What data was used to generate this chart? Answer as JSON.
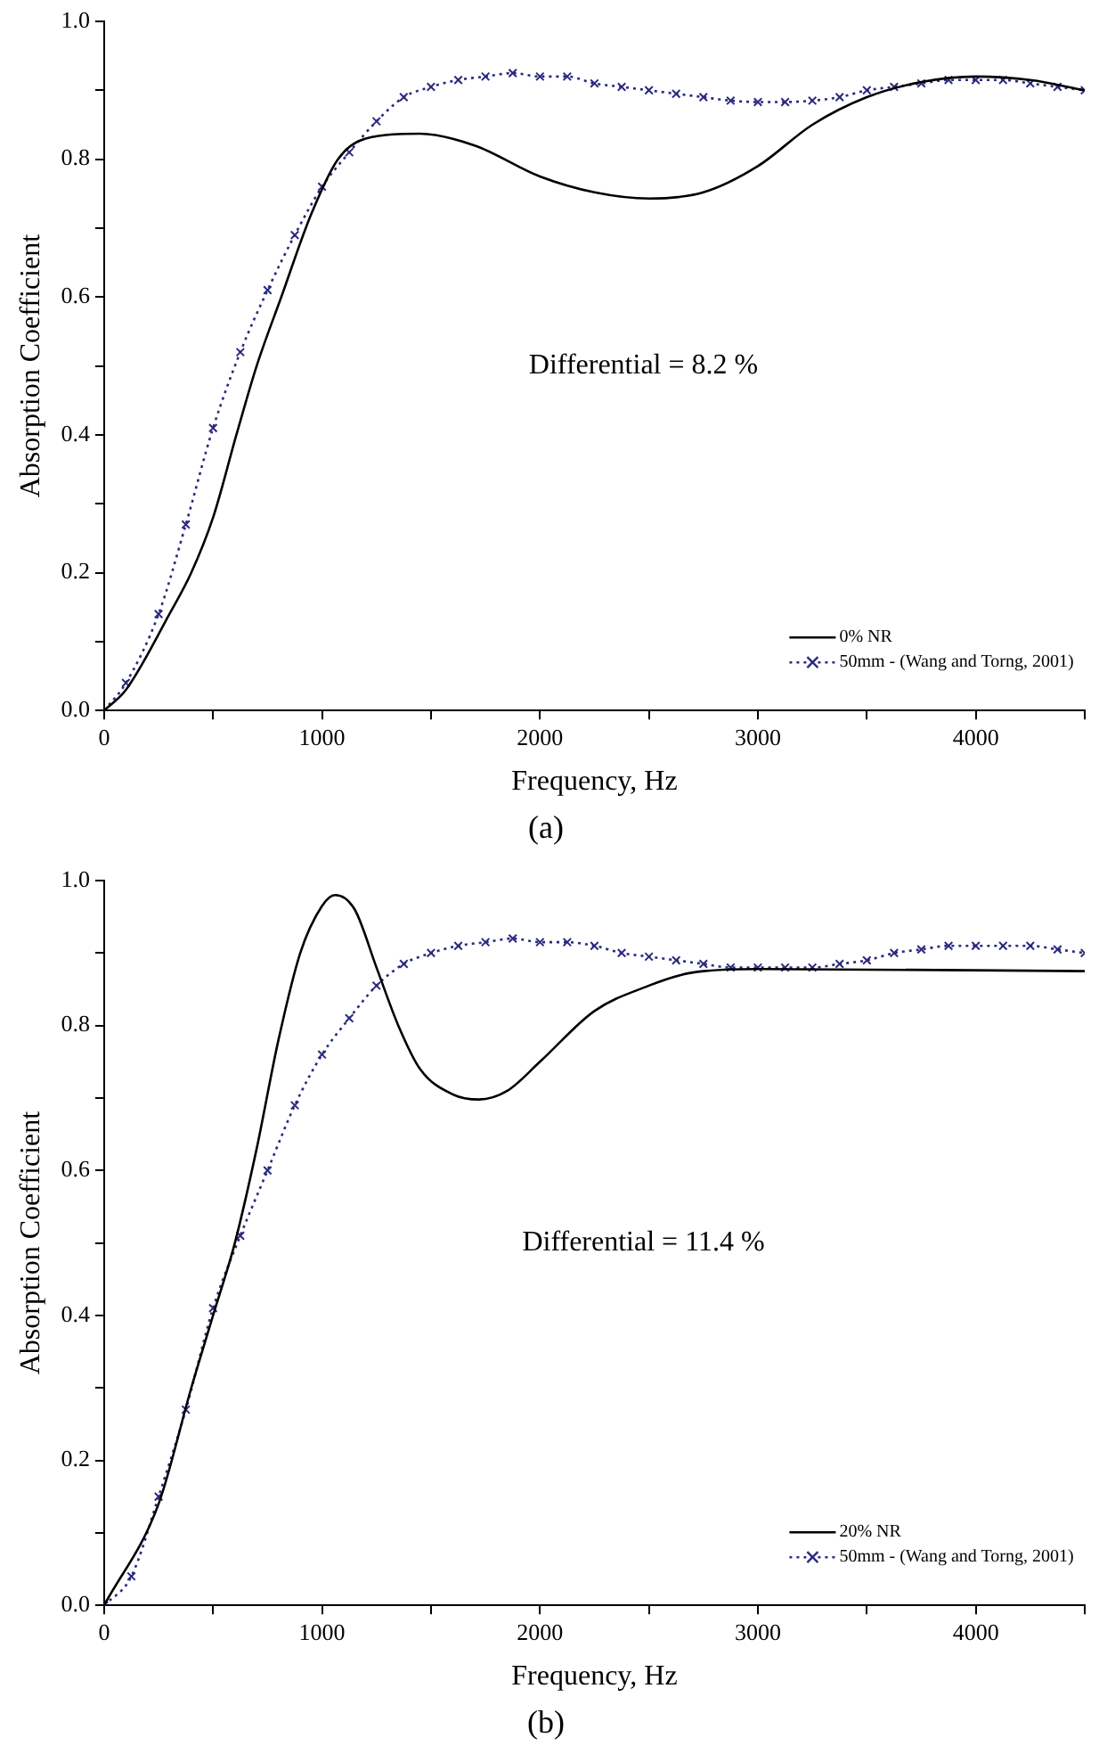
{
  "chart_data": [
    {
      "type": "line",
      "title": "(a)",
      "xlabel": "Frequency, Hz",
      "ylabel": "Absorption Coefficient",
      "annotations": [
        "Differential = 8.2 %"
      ],
      "xlim": [
        0,
        4500
      ],
      "ylim": [
        0,
        1.0
      ],
      "xticks": [
        0,
        {
          "value": 500,
          "label": null
        },
        1000,
        {
          "value": 1500,
          "label": null
        },
        2000,
        {
          "value": 2500,
          "label": null
        },
        3000,
        {
          "value": 3500,
          "label": null
        },
        4000,
        {
          "value": 4500,
          "label": null
        }
      ],
      "yticks": [
        "0.0",
        {
          "value": 0.1,
          "label": null
        },
        {
          "value": 0.2,
          "label": "0.2"
        },
        {
          "value": 0.3,
          "label": null
        },
        {
          "value": 0.4,
          "label": "0.4"
        },
        {
          "value": 0.5,
          "label": null
        },
        {
          "value": 0.6,
          "label": "0.6"
        },
        {
          "value": 0.7,
          "label": null
        },
        {
          "value": 0.8,
          "label": "0.8"
        },
        {
          "value": 0.9,
          "label": null
        },
        {
          "value": 1.0,
          "label": "1.0"
        }
      ],
      "grid": false,
      "legend": "bottom right",
      "series": [
        {
          "name": "0% NR",
          "color": "#000000",
          "marker": "none",
          "line_style": "solid",
          "x": [
            0,
            100,
            300,
            400,
            500,
            607,
            700,
            813,
            950,
            1073,
            1200,
            1450,
            1700,
            2000,
            2250,
            2500,
            2750,
            3000,
            3250,
            3500,
            3750,
            4000,
            4250,
            4500
          ],
          "values": [
            0,
            0.03,
            0.14,
            0.2,
            0.28,
            0.4,
            0.5,
            0.6,
            0.72,
            0.8,
            0.83,
            0.837,
            0.82,
            0.775,
            0.752,
            0.743,
            0.752,
            0.79,
            0.85,
            0.89,
            0.912,
            0.92,
            0.915,
            0.9
          ]
        },
        {
          "name": "50mm - (Wang and Torng, 2001)",
          "color": "#2a2a80",
          "marker": "cross",
          "line_style": "dotted",
          "x": [
            0,
            100,
            250,
            375,
            500,
            625,
            750,
            875,
            1000,
            1125,
            1250,
            1375,
            1500,
            1625,
            1750,
            1875,
            2000,
            2125,
            2250,
            2375,
            2500,
            2625,
            2750,
            2875,
            3000,
            3125,
            3250,
            3375,
            3500,
            3625,
            3750,
            3875,
            4000,
            4125,
            4250,
            4375,
            4500
          ],
          "values": [
            0,
            0.04,
            0.14,
            0.27,
            0.41,
            0.52,
            0.61,
            0.69,
            0.76,
            0.81,
            0.855,
            0.89,
            0.905,
            0.915,
            0.92,
            0.925,
            0.92,
            0.92,
            0.91,
            0.905,
            0.9,
            0.895,
            0.89,
            0.885,
            0.883,
            0.883,
            0.885,
            0.89,
            0.9,
            0.905,
            0.91,
            0.915,
            0.915,
            0.915,
            0.91,
            0.905,
            0.9
          ]
        }
      ]
    },
    {
      "type": "line",
      "title": "(b)",
      "xlabel": "Frequency, Hz",
      "ylabel": "Absorption Coefficient",
      "annotations": [
        "Differential = 11.4 %"
      ],
      "xlim": [
        0,
        4500
      ],
      "ylim": [
        0,
        1.0
      ],
      "xticks": [
        0,
        {
          "value": 500,
          "label": null
        },
        1000,
        {
          "value": 1500,
          "label": null
        },
        2000,
        {
          "value": 2500,
          "label": null
        },
        3000,
        {
          "value": 3500,
          "label": null
        },
        4000,
        {
          "value": 4500,
          "label": null
        }
      ],
      "yticks": [
        "0.0",
        {
          "value": 0.1,
          "label": null
        },
        {
          "value": 0.2,
          "label": "0.2"
        },
        {
          "value": 0.3,
          "label": null
        },
        {
          "value": 0.4,
          "label": "0.4"
        },
        {
          "value": 0.5,
          "label": null
        },
        {
          "value": 0.6,
          "label": "0.6"
        },
        {
          "value": 0.7,
          "label": null
        },
        {
          "value": 0.8,
          "label": "0.8"
        },
        {
          "value": 0.9,
          "label": null
        },
        {
          "value": 1.0,
          "label": "1.0"
        }
      ],
      "grid": false,
      "legend": "bottom right",
      "series": [
        {
          "name": "20% NR",
          "color": "#000000",
          "marker": "none",
          "line_style": "solid",
          "x": [
            0,
            250,
            400,
            500,
            600,
            700,
            800,
            900,
            1000,
            1060,
            1150,
            1250,
            1350,
            1450,
            1600,
            1720,
            1850,
            2000,
            2250,
            2500,
            2650,
            2750,
            3000,
            4500
          ],
          "values": [
            0,
            0.14,
            0.3,
            0.4,
            0.5,
            0.63,
            0.78,
            0.9,
            0.965,
            0.98,
            0.96,
            0.88,
            0.8,
            0.74,
            0.705,
            0.698,
            0.71,
            0.75,
            0.82,
            0.855,
            0.87,
            0.875,
            0.878,
            0.875
          ]
        },
        {
          "name": "50mm - (Wang and Torng, 2001)",
          "color": "#2a2a80",
          "marker": "cross",
          "line_style": "dotted",
          "x": [
            0,
            125,
            250,
            375,
            500,
            625,
            750,
            875,
            1000,
            1125,
            1250,
            1375,
            1500,
            1625,
            1750,
            1875,
            2000,
            2125,
            2250,
            2375,
            2500,
            2625,
            2750,
            2875,
            3000,
            3125,
            3250,
            3375,
            3500,
            3625,
            3750,
            3875,
            4000,
            4125,
            4250,
            4375,
            4500
          ],
          "values": [
            0,
            0.04,
            0.15,
            0.27,
            0.41,
            0.51,
            0.6,
            0.69,
            0.76,
            0.81,
            0.855,
            0.885,
            0.9,
            0.91,
            0.915,
            0.92,
            0.915,
            0.915,
            0.91,
            0.9,
            0.895,
            0.89,
            0.885,
            0.88,
            0.88,
            0.88,
            0.88,
            0.885,
            0.89,
            0.9,
            0.905,
            0.91,
            0.91,
            0.91,
            0.91,
            0.905,
            0.9
          ]
        }
      ]
    }
  ]
}
